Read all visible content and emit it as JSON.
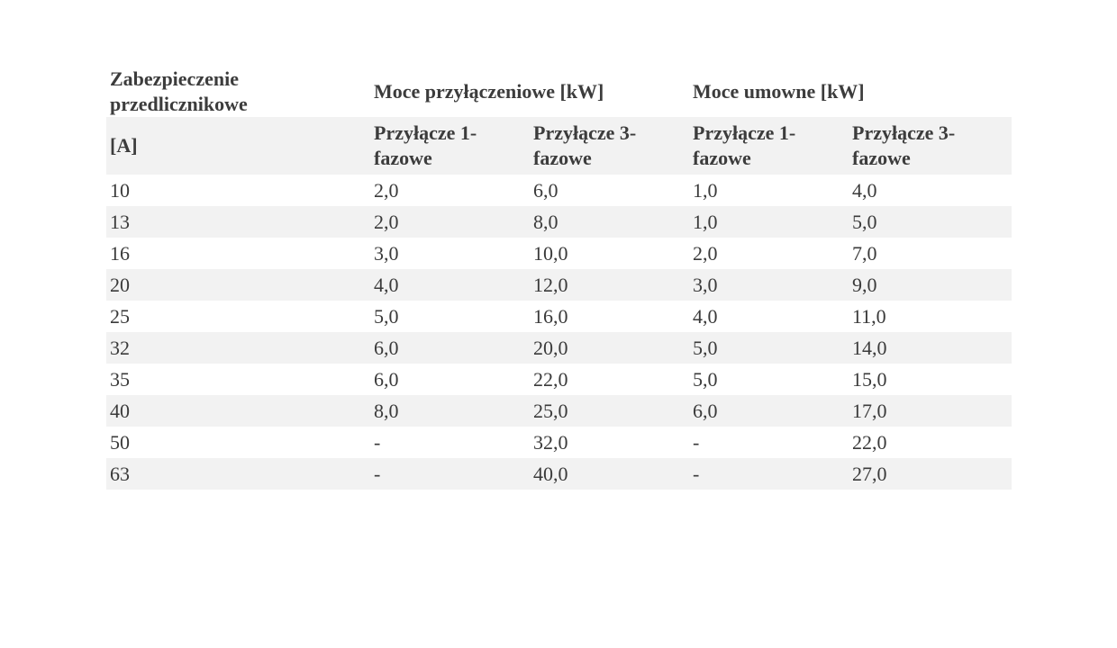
{
  "header": {
    "col0_line1": "Zabezpieczenie",
    "col0_line2": "przedlicznikowe",
    "group1": "Moce przyłączeniowe [kW]",
    "group2": "Moce umowne [kW]",
    "unit": "[A]",
    "sub1_line1": "Przyłącze 1-",
    "sub1_line2": "fazowe",
    "sub3_line1": "Przyłącze 3-",
    "sub3_line2": "fazowe"
  },
  "rows": [
    [
      "10",
      "2,0",
      "6,0",
      "1,0",
      "4,0"
    ],
    [
      "13",
      "2,0",
      "8,0",
      "1,0",
      "5,0"
    ],
    [
      "16",
      "3,0",
      "10,0",
      "2,0",
      "7,0"
    ],
    [
      "20",
      "4,0",
      "12,0",
      "3,0",
      "9,0"
    ],
    [
      "25",
      "5,0",
      "16,0",
      "4,0",
      "11,0"
    ],
    [
      "32",
      "6,0",
      "20,0",
      "5,0",
      "14,0"
    ],
    [
      "35",
      "6,0",
      "22,0",
      "5,0",
      "15,0"
    ],
    [
      "40",
      "8,0",
      "25,0",
      "6,0",
      "17,0"
    ],
    [
      "50",
      "-",
      "32,0",
      "-",
      "22,0"
    ],
    [
      "63",
      "-",
      "40,0",
      "-",
      "27,0"
    ]
  ],
  "colors": {
    "stripe": "#f2f2f2",
    "text": "#3a3a3a"
  }
}
